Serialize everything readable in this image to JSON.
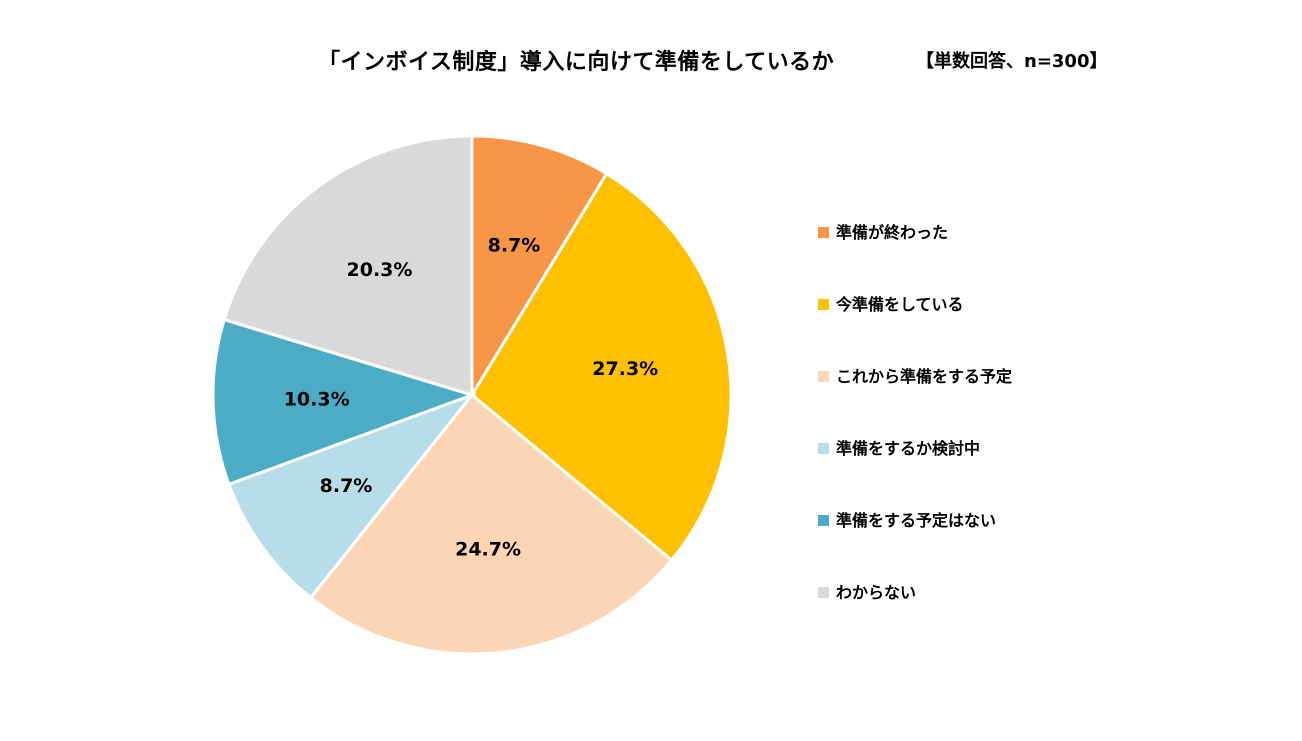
{
  "chart_data": {
    "type": "pie",
    "title": "「インボイス制度」導入に向けて準備をしているか",
    "subtitle": "【単数回答、n=300】",
    "legend_position": "right",
    "slices": [
      {
        "label": "準備が終わった",
        "value": 8.7,
        "display": "8.7%",
        "color": "#F79646"
      },
      {
        "label": "今準備をしている",
        "value": 27.3,
        "display": "27.3%",
        "color": "#FFC000"
      },
      {
        "label": "これから準備をする予定",
        "value": 24.7,
        "display": "24.7%",
        "color": "#FBD5B5"
      },
      {
        "label": "準備をするか検討中",
        "value": 8.7,
        "display": "8.7%",
        "color": "#B7DDE8"
      },
      {
        "label": "準備をする予定はない",
        "value": 10.3,
        "display": "10.3%",
        "color": "#4BACC6"
      },
      {
        "label": "わからない",
        "value": 20.3,
        "display": "20.3%",
        "color": "#D9D9D9"
      }
    ]
  }
}
